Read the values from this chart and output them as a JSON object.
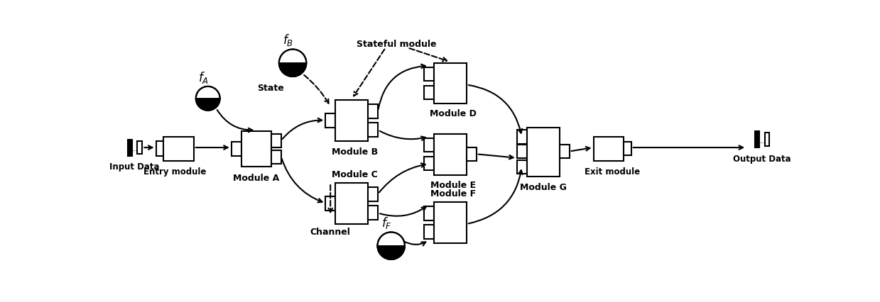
{
  "fig_width": 12.39,
  "fig_height": 4.27,
  "dpi": 100,
  "bg_color": "white",
  "label_input": "Input Data",
  "label_output": "Output Data",
  "label_entry": "Entry module",
  "label_exit": "Exit module",
  "label_A": "Module A",
  "label_B": "Module B",
  "label_C": "Module C",
  "label_D": "Module D",
  "label_E": "Module E",
  "label_F": "Module F",
  "label_G": "Module G",
  "label_state": "State",
  "label_stateful": "Stateful module",
  "label_channel": "Channel",
  "label_fA": "$f_A$",
  "label_fB": "$f_B$",
  "label_fF": "$f_F$",
  "note_fontsize": 9,
  "module_fontsize": 9,
  "bold_font": "bold"
}
